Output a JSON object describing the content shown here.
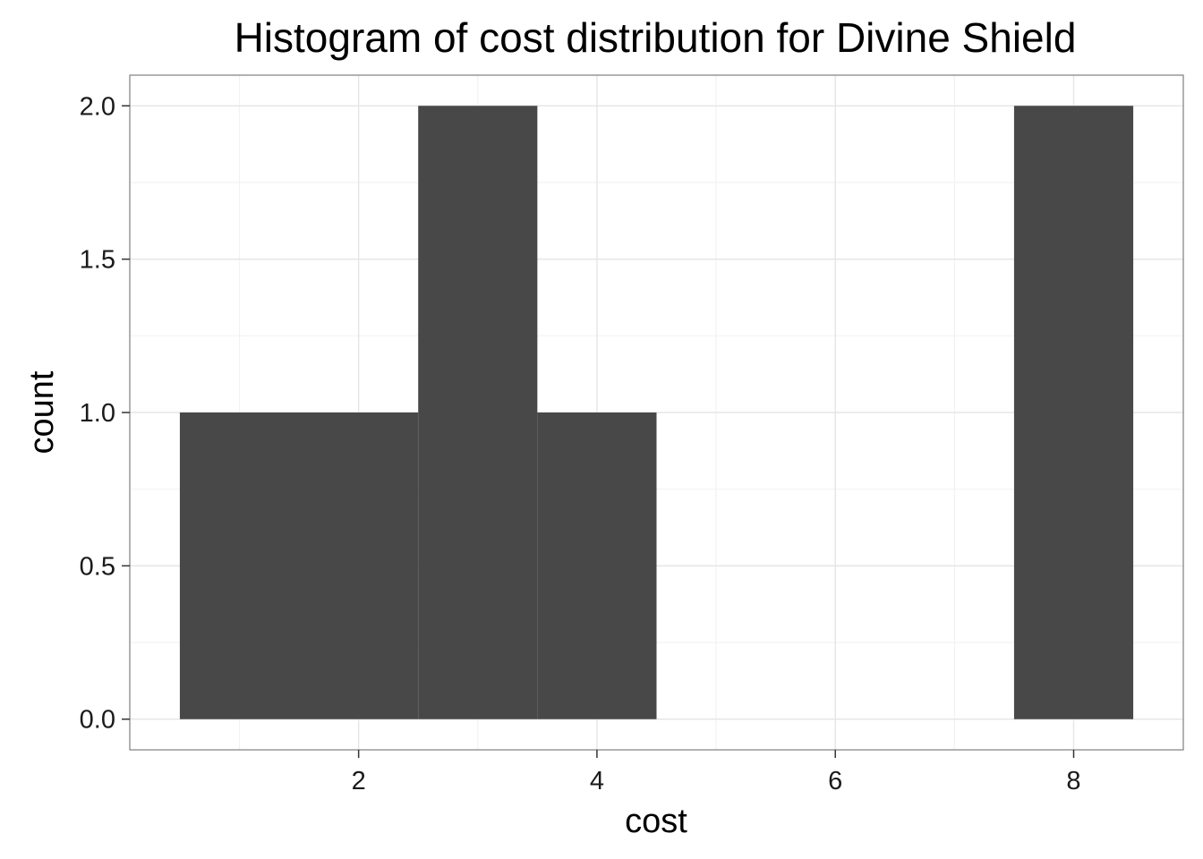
{
  "chart_data": {
    "type": "bar",
    "title": "Histogram of cost distribution for Divine Shield",
    "xlabel": "cost",
    "ylabel": "count",
    "bins": [
      {
        "x_start": 0.5,
        "x_end": 2.5,
        "count": 1
      },
      {
        "x_start": 2.5,
        "x_end": 3.5,
        "count": 2
      },
      {
        "x_start": 3.5,
        "x_end": 4.5,
        "count": 1
      },
      {
        "x_start": 7.5,
        "x_end": 8.5,
        "count": 2
      }
    ],
    "xlim": [
      0.08,
      8.92
    ],
    "ylim": [
      -0.1,
      2.1
    ],
    "x_ticks": [
      2,
      4,
      6,
      8
    ],
    "x_tick_labels": [
      "2",
      "4",
      "6",
      "8"
    ],
    "y_ticks": [
      0,
      0.5,
      1,
      1.5,
      2
    ],
    "y_tick_labels": [
      "0.0",
      "0.5",
      "1.0",
      "1.5",
      "2.0"
    ],
    "x_minor_ticks": [
      1,
      3,
      5,
      7
    ],
    "y_minor_ticks": [
      0.25,
      0.75,
      1.25,
      1.75
    ],
    "grid": true,
    "legend": "none",
    "colors": {
      "bar_fill": "#484848",
      "panel_border": "#7f7f7f",
      "grid_major": "#e5e5e5",
      "grid_minor": "#f2f2f2",
      "tick_mark": "#333333"
    }
  }
}
